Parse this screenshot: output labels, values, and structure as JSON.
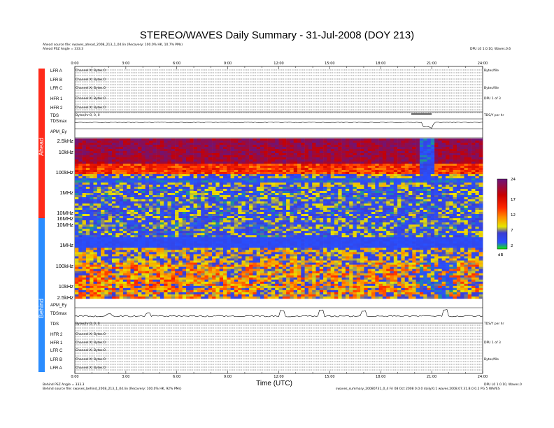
{
  "title": "STEREO/WAVES Daily Summary - 31-Jul-2008 (DOY 213)",
  "header": {
    "ahead_source": "Ahead source file: swaves_ahead_2008_213_1_04.lin (Recovery: 100.0% HK, 10.7% PMs)",
    "ahead_psz": "Ahead PSZ Angle = 333.3",
    "top_right": "DPU L0 1.0.10, Waves.0.6"
  },
  "footer": {
    "behind_psz": "Behind PSZ Angle = 333.3",
    "behind_source": "Behind source file: swaves_behind_2008_213_1_04.lin (Recovery: 100.0% HK, 92% PMs)",
    "bottom_right_1": "DPU L0 1.0.10, Waves.0",
    "bottom_right_2": "swaves_summary_20080731_0_4 Fri 08 Oct 2008 0.0.0 daily/0.1 waves.2008.07.31.B.0.0.2 PG 5 WAVES"
  },
  "xaxis_label": "Time (UTC)",
  "time_ticks": [
    "0:00",
    "3:00",
    "6:00",
    "9:00",
    "12:00",
    "15:00",
    "18:00",
    "21:00",
    "24:00"
  ],
  "spacecraft": {
    "ahead": "Ahead",
    "behind": "Behind"
  },
  "colors": {
    "ahead": "#ff2a1a",
    "behind": "#2a8cff"
  },
  "ahead_panels": [
    "LFR A",
    "LFR B",
    "LFR C",
    "HFR 1",
    "HFR 2",
    "TDS",
    "TDSmax"
  ],
  "behind_panels": [
    "TDSmax",
    "TDS",
    "HFR 2",
    "HFR 1",
    "LFR C",
    "LFR B",
    "LFR A"
  ],
  "panel_tiny": {
    "lfr_a": "Channel:X; Bytes:0",
    "lfr_b": "Channel:X; Bytes:0",
    "lfr_c": "Channel:X; Bytes:0",
    "hfr_1": "Channel:X; Bytes:0",
    "hfr_2": "Channel:X; Bytes:0",
    "tds": "Bytes/hr:0, 0, 0"
  },
  "right_tiny": {
    "lfr": "Bytes/file",
    "hfr": "DPU 1 of 3",
    "tds": "TDS/Y per hr"
  },
  "apm_label": "APM_Ey",
  "freq_labels_ahead": [
    "2.5kHz",
    "10kHz",
    "100kHz",
    "1MHz",
    "10MHz",
    "16MHz"
  ],
  "freq_labels_behind": [
    "10MHz",
    "1MHz",
    "100kHz",
    "10kHz",
    "2.5kHz"
  ],
  "colorbar": {
    "ticks": [
      "24",
      "17",
      "12",
      "7",
      "2"
    ],
    "unit": "dB"
  },
  "chart_data": {
    "type": "heatmap",
    "title": "STEREO/WAVES Daily Summary - 31-Jul-2008 (DOY 213)",
    "xlabel": "Time (UTC)",
    "ylabel": "",
    "x_range_hours": [
      0,
      24
    ],
    "x_ticks": [
      "0:00",
      "3:00",
      "6:00",
      "9:00",
      "12:00",
      "15:00",
      "18:00",
      "21:00",
      "24:00"
    ],
    "y_ticks_ahead": [
      "2.5kHz",
      "10kHz",
      "100kHz",
      "1MHz",
      "10MHz",
      "16MHz"
    ],
    "y_ticks_behind": [
      "10MHz",
      "1MHz",
      "100kHz",
      "10kHz",
      "2.5kHz"
    ],
    "colorbar_range_dB": [
      2,
      24
    ],
    "colorbar_ticks": [
      24,
      17,
      12,
      7,
      2
    ],
    "colormap": [
      "#14e614",
      "#3c64ff",
      "#3a3ad8",
      "#e0e000",
      "#ff8c00",
      "#ff2a00",
      "#c80000",
      "#6a1a7a"
    ],
    "features": [
      {
        "spacecraft": "Ahead",
        "band": "2.5kHz-100kHz",
        "level_dB": 22,
        "hours": [
          0,
          24
        ]
      },
      {
        "spacecraft": "Ahead",
        "band": "2.5kHz-100kHz",
        "level_dB": 2,
        "hours": [
          20.3,
          21.2
        ]
      },
      {
        "spacecraft": "Behind",
        "band": "1MHz",
        "level_dB": 4,
        "hours": [
          0,
          24
        ]
      }
    ]
  }
}
